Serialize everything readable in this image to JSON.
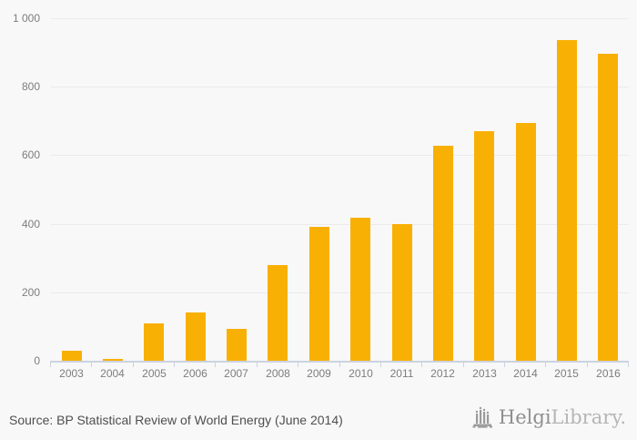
{
  "chart_data": {
    "type": "bar",
    "categories": [
      "2003",
      "2004",
      "2005",
      "2006",
      "2007",
      "2008",
      "2009",
      "2010",
      "2011",
      "2012",
      "2013",
      "2014",
      "2015",
      "2016"
    ],
    "values": [
      28,
      5,
      108,
      141,
      94,
      278,
      392,
      418,
      399,
      628,
      669,
      695,
      937,
      896
    ],
    "title": "",
    "xlabel": "",
    "ylabel": "",
    "ylim": [
      0,
      1000
    ],
    "yticks": [
      0,
      200,
      400,
      600,
      800,
      1000
    ],
    "ytick_labels": [
      "0",
      "200",
      "400",
      "600",
      "800",
      "1 000"
    ],
    "grid": true,
    "legend": "none",
    "bar_color": "#f9b005"
  },
  "footer": {
    "source_text": "Source: BP Statistical Review of World Energy (June 2014)",
    "logo": {
      "icon": "helgi-towers-icon",
      "brand_primary": "Helgi",
      "brand_secondary": "Library."
    }
  },
  "colors": {
    "bar": "#f9b005",
    "background": "#f8f8f8",
    "gridline": "#ebebeb",
    "axis": "#ccd3e0",
    "tick_label": "#7d7d7d",
    "source_text": "#4f4f4f",
    "logo_primary": "#8f8f8f",
    "logo_secondary": "#b5b5b5"
  }
}
